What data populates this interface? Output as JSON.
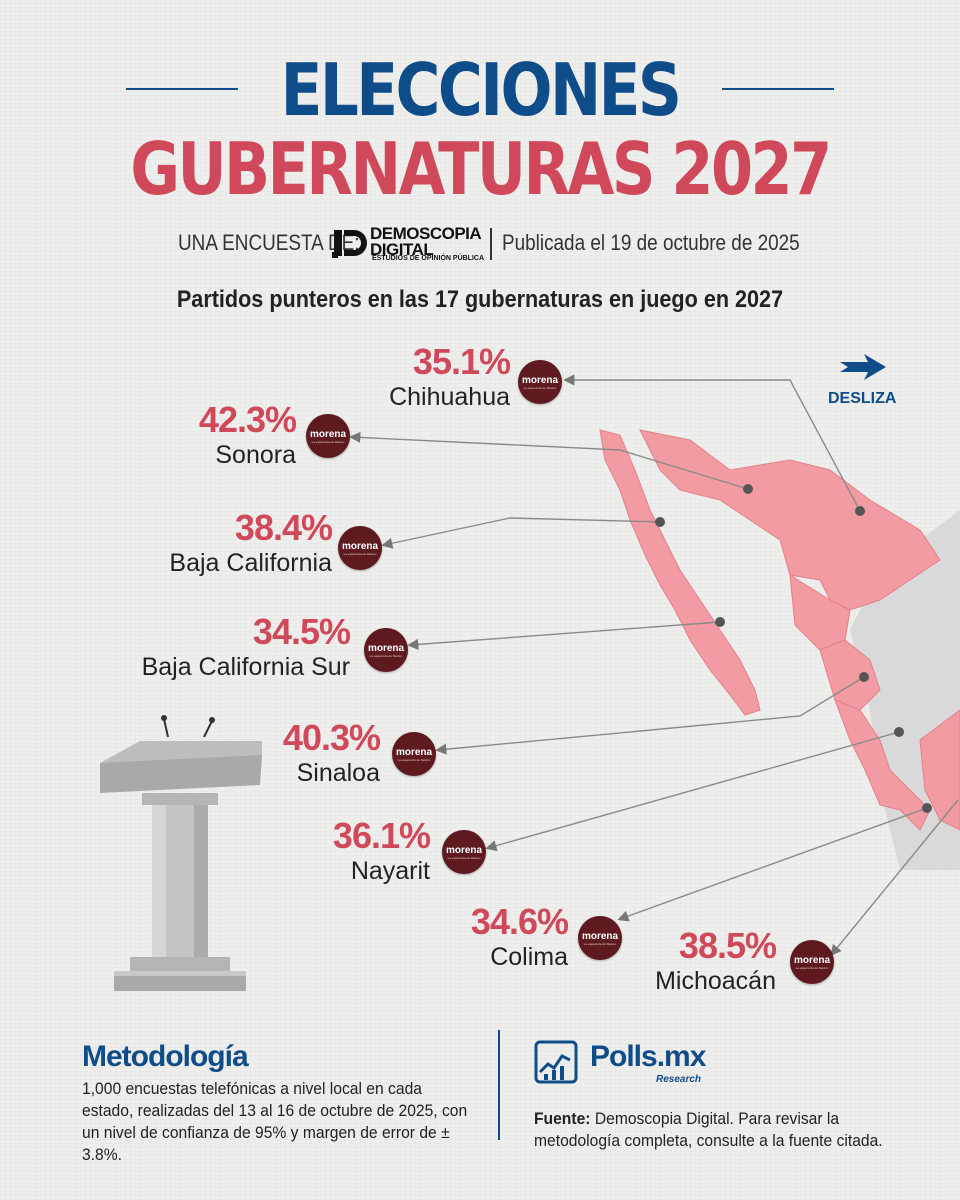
{
  "header": {
    "title_line1": "ELECCIONES",
    "title_line2": "GUBERNATURAS 2027",
    "byline_prefix": "UNA ENCUESTA DE:",
    "pollster_logo": {
      "line1": "DEMOSCOPIA",
      "line2": "DIGITAL",
      "line3": "ESTUDIOS DE OPINIÓN PÚBLICA"
    },
    "published": "Publicada el 19 de octubre de 2025",
    "subtitle": "Partidos punteros en las 17 gubernaturas en juego en 2027"
  },
  "swipe_hint": {
    "label": "DESLIZA",
    "icon": "arrow-right-icon"
  },
  "party_badge": {
    "name": "morena",
    "tagline": "La esperanza de México",
    "color": "#5e1a1f"
  },
  "colors": {
    "title_blue": "#0e4c8a",
    "title_red": "#d0495a",
    "map_state": "#f29ba2",
    "map_other": "#d9d9d9"
  },
  "states": [
    {
      "name": "Chihuahua",
      "percent": "35.1%"
    },
    {
      "name": "Sonora",
      "percent": "42.3%"
    },
    {
      "name": "Baja California",
      "percent": "38.4%"
    },
    {
      "name": "Baja California Sur",
      "percent": "34.5%"
    },
    {
      "name": "Sinaloa",
      "percent": "40.3%"
    },
    {
      "name": "Nayarit",
      "percent": "36.1%"
    },
    {
      "name": "Colima",
      "percent": "34.6%"
    },
    {
      "name": "Michoacán",
      "percent": "38.5%"
    }
  ],
  "methodology": {
    "title": "Metodología",
    "text": "1,000 encuestas telefónicas a nivel local en cada estado, realizadas del 13 al 16 de octubre de 2025, con un nivel de confianza de 95% y margen de error de ± 3.8%."
  },
  "footer": {
    "brand": "Polls.mx",
    "brand_sub": "Research",
    "source_label": "Fuente:",
    "source_text": " Demoscopia Digital. Para revisar la metodología completa, consulte a la fuente citada."
  }
}
